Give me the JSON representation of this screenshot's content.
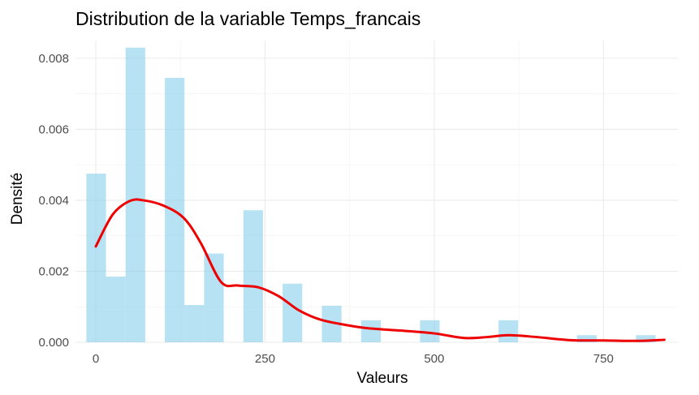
{
  "chart_data": {
    "type": "bar",
    "title": "Distribution de la variable Temps_francais",
    "xlabel": "Valeurs",
    "ylabel": "Densité",
    "xlim": [
      -30,
      860
    ],
    "ylim": [
      0,
      0.0085
    ],
    "x_ticks": [
      0,
      250,
      500,
      750
    ],
    "x_tick_labels": [
      "0",
      "250",
      "500",
      "750"
    ],
    "y_ticks": [
      0,
      0.002,
      0.004,
      0.006,
      0.008
    ],
    "y_tick_labels": [
      "0.000",
      "0.002",
      "0.004",
      "0.006",
      "0.008"
    ],
    "grid": true,
    "legend": "none",
    "bin_width": 29,
    "bins": [
      {
        "x0": -14,
        "x1": 15,
        "density": 0.00475
      },
      {
        "x0": 15,
        "x1": 44,
        "density": 0.00185
      },
      {
        "x0": 44,
        "x1": 73,
        "density": 0.0083
      },
      {
        "x0": 73,
        "x1": 102,
        "density": 0
      },
      {
        "x0": 102,
        "x1": 131,
        "density": 0.00745
      },
      {
        "x0": 131,
        "x1": 160,
        "density": 0.00105
      },
      {
        "x0": 160,
        "x1": 189,
        "density": 0.0025
      },
      {
        "x0": 189,
        "x1": 218,
        "density": 0
      },
      {
        "x0": 218,
        "x1": 247,
        "density": 0.00372
      },
      {
        "x0": 247,
        "x1": 276,
        "density": 0
      },
      {
        "x0": 276,
        "x1": 305,
        "density": 0.00165
      },
      {
        "x0": 305,
        "x1": 334,
        "density": 0
      },
      {
        "x0": 334,
        "x1": 363,
        "density": 0.00103
      },
      {
        "x0": 363,
        "x1": 392,
        "density": 0
      },
      {
        "x0": 392,
        "x1": 421,
        "density": 0.00062
      },
      {
        "x0": 421,
        "x1": 450,
        "density": 0
      },
      {
        "x0": 450,
        "x1": 479,
        "density": 0
      },
      {
        "x0": 479,
        "x1": 508,
        "density": 0.00062
      },
      {
        "x0": 508,
        "x1": 537,
        "density": 0
      },
      {
        "x0": 537,
        "x1": 566,
        "density": 0
      },
      {
        "x0": 566,
        "x1": 595,
        "density": 0
      },
      {
        "x0": 595,
        "x1": 624,
        "density": 0.00062
      },
      {
        "x0": 624,
        "x1": 653,
        "density": 0
      },
      {
        "x0": 653,
        "x1": 682,
        "density": 0
      },
      {
        "x0": 682,
        "x1": 711,
        "density": 0
      },
      {
        "x0": 711,
        "x1": 740,
        "density": 0.0002
      },
      {
        "x0": 740,
        "x1": 769,
        "density": 0
      },
      {
        "x0": 769,
        "x1": 798,
        "density": 0
      },
      {
        "x0": 798,
        "x1": 827,
        "density": 0.0002
      }
    ],
    "density_curve": {
      "x": [
        0,
        25,
        50,
        70,
        100,
        130,
        155,
        185,
        210,
        240,
        270,
        300,
        330,
        360,
        400,
        450,
        500,
        545,
        580,
        610,
        650,
        700,
        750,
        800,
        840
      ],
      "y": [
        0.0027,
        0.0036,
        0.00398,
        0.004,
        0.00385,
        0.0035,
        0.0028,
        0.0017,
        0.0016,
        0.00155,
        0.0013,
        0.0009,
        0.00065,
        0.00052,
        0.0004,
        0.00033,
        0.00025,
        0.00012,
        0.00015,
        0.0002,
        0.00015,
        6e-05,
        5e-05,
        4e-05,
        7e-05
      ]
    },
    "colors": {
      "bar_fill": "#87ceeb",
      "bar_opacity": "0.6",
      "curve": "#ee0000",
      "grid_major": "#ebebeb",
      "grid_minor": "#f2f2f2"
    }
  }
}
